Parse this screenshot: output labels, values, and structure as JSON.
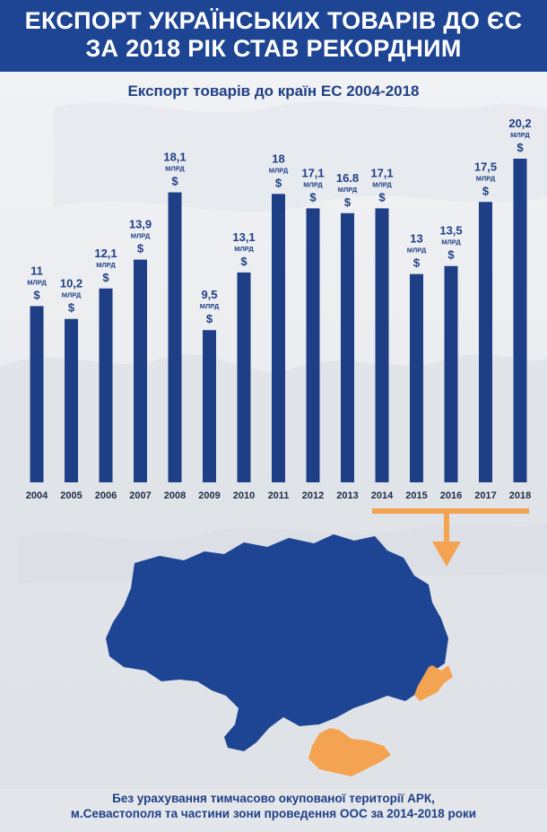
{
  "header": {
    "line1": "ЕКСПОРТ УКРАЇНСЬКИХ ТОВАРІВ ДО ЄС",
    "line2": "ЗА 2018 РІК СТАВ РЕКОРДНИМ"
  },
  "chart_data": {
    "type": "bar",
    "title": "Експорт товарів до країн ЕС 2004-2018",
    "categories": [
      "2004",
      "2005",
      "2006",
      "2007",
      "2008",
      "2009",
      "2010",
      "2011",
      "2012",
      "2013",
      "2014",
      "2015",
      "2016",
      "2017",
      "2018"
    ],
    "values": [
      11,
      10.2,
      12.1,
      13.9,
      18.1,
      9.5,
      13.1,
      18,
      17.1,
      16.8,
      17.1,
      13,
      13.5,
      17.5,
      20.2
    ],
    "value_labels": [
      "11",
      "10,2",
      "12,1",
      "13,9",
      "18,1",
      "9,5",
      "13,1",
      "18",
      "17,1",
      "16.8",
      "17,1",
      "13",
      "13,5",
      "17,5",
      "20,2"
    ],
    "unit_label": "МЛРД",
    "currency_label": "$",
    "ylim": [
      0,
      20.2
    ],
    "grid": false,
    "bar_color": "#1e3f86"
  },
  "map": {
    "country_color": "#1e4594",
    "occupied_color": "#f4a352",
    "arrow_color": "#f4a352"
  },
  "footnote": {
    "line1": "Без урахування тимчасово окупованої території АРК,",
    "line2": "м.Севастополя та частини зони проведення ООС за 2014-2018 роки"
  }
}
